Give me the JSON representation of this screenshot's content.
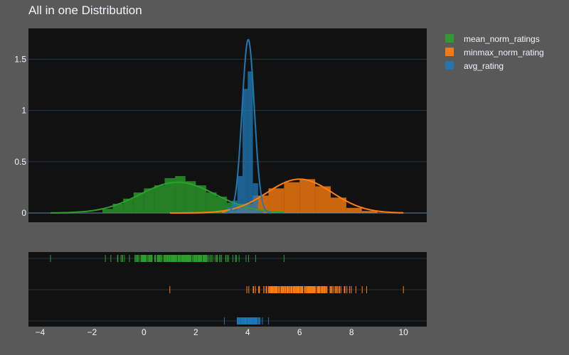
{
  "chart_data": {
    "type": "histogram",
    "title": "All in one Distribution",
    "grid": true,
    "legend_position": "top-right",
    "x_ticks": [
      "−4",
      "−2",
      "0",
      "2",
      "4",
      "6",
      "8",
      "10"
    ],
    "x_tick_values": [
      -4,
      -2,
      0,
      2,
      4,
      6,
      8,
      10
    ],
    "y_ticks": [
      "0",
      "0.5",
      "1",
      "1.5"
    ],
    "y_tick_values": [
      0,
      0.5,
      1,
      1.5
    ],
    "xlim": [
      -4.45,
      10.9
    ],
    "ylim": [
      -0.09,
      1.8
    ],
    "series": [
      {
        "name": "mean_norm_ratings",
        "color": "#2ca02c",
        "hist_bins": [
          {
            "x0": -1.6,
            "x1": -1.2,
            "y": 0.04
          },
          {
            "x0": -1.2,
            "x1": -0.8,
            "y": 0.09
          },
          {
            "x0": -0.8,
            "x1": -0.4,
            "y": 0.14
          },
          {
            "x0": -0.4,
            "x1": 0.0,
            "y": 0.2
          },
          {
            "x0": 0.0,
            "x1": 0.4,
            "y": 0.24
          },
          {
            "x0": 0.4,
            "x1": 0.8,
            "y": 0.27
          },
          {
            "x0": 0.8,
            "x1": 1.2,
            "y": 0.34
          },
          {
            "x0": 1.2,
            "x1": 1.6,
            "y": 0.36
          },
          {
            "x0": 1.6,
            "x1": 2.0,
            "y": 0.31
          },
          {
            "x0": 2.0,
            "x1": 2.4,
            "y": 0.27
          },
          {
            "x0": 2.4,
            "x1": 2.8,
            "y": 0.2
          },
          {
            "x0": 2.8,
            "x1": 3.2,
            "y": 0.16
          },
          {
            "x0": 3.2,
            "x1": 3.6,
            "y": 0.1
          },
          {
            "x0": 3.6,
            "x1": 4.0,
            "y": 0.06
          },
          {
            "x0": 4.0,
            "x1": 4.4,
            "y": 0.03
          }
        ],
        "kde": {
          "mean": 1.3,
          "sd": 1.45,
          "peak": 0.3,
          "x_range": [
            -3.6,
            5.4
          ]
        },
        "rug_range": [
          -3.6,
          5.4
        ],
        "rug_count": 200,
        "rug_sd": 1.45
      },
      {
        "name": "minmax_norm_rating",
        "color": "#ff7f0e",
        "hist_bins": [
          {
            "x0": 3.0,
            "x1": 3.6,
            "y": 0.02
          },
          {
            "x0": 3.6,
            "x1": 4.2,
            "y": 0.09
          },
          {
            "x0": 4.2,
            "x1": 4.8,
            "y": 0.17
          },
          {
            "x0": 4.8,
            "x1": 5.4,
            "y": 0.24
          },
          {
            "x0": 5.4,
            "x1": 6.0,
            "y": 0.3
          },
          {
            "x0": 6.0,
            "x1": 6.6,
            "y": 0.33
          },
          {
            "x0": 6.6,
            "x1": 7.2,
            "y": 0.26
          },
          {
            "x0": 7.2,
            "x1": 7.8,
            "y": 0.15
          },
          {
            "x0": 7.8,
            "x1": 8.4,
            "y": 0.05
          },
          {
            "x0": 8.4,
            "x1": 9.0,
            "y": 0.02
          }
        ],
        "kde": {
          "mean": 6.0,
          "sd": 1.25,
          "peak": 0.33,
          "x_range": [
            1.0,
            10.0
          ]
        },
        "rug_range": [
          1.0,
          10.0
        ],
        "rug_count": 200,
        "rug_sd": 1.25
      },
      {
        "name": "avg_rating",
        "color": "#1f77b4",
        "hist_bins": [
          {
            "x0": 3.2,
            "x1": 3.4,
            "y": 0.06
          },
          {
            "x0": 3.4,
            "x1": 3.6,
            "y": 0.12
          },
          {
            "x0": 3.6,
            "x1": 3.8,
            "y": 0.36
          },
          {
            "x0": 3.8,
            "x1": 4.0,
            "y": 1.21
          },
          {
            "x0": 4.0,
            "x1": 4.2,
            "y": 1.38
          },
          {
            "x0": 4.2,
            "x1": 4.4,
            "y": 0.29
          },
          {
            "x0": 4.4,
            "x1": 4.6,
            "y": 0.03
          }
        ],
        "kde": {
          "mean": 4.02,
          "sd": 0.235,
          "peak": 1.69,
          "x_range": [
            3.1,
            4.9
          ]
        },
        "rug_range": [
          3.1,
          4.8
        ],
        "rug_count": 120,
        "rug_sd": 0.3
      }
    ]
  }
}
